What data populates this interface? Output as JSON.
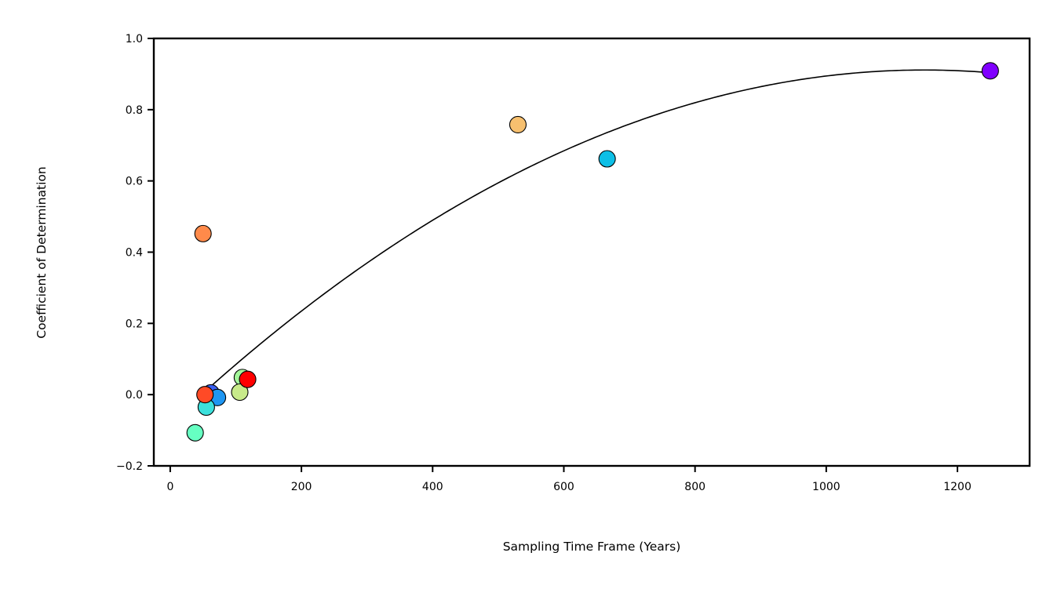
{
  "chart_data": {
    "type": "scatter",
    "title": "",
    "xlabel": "Sampling Time Frame (Years)",
    "ylabel": "Coefficient of Determination",
    "xlim": [
      -25,
      1310
    ],
    "ylim": [
      -0.2,
      1.0
    ],
    "xticks": [
      0,
      200,
      400,
      600,
      800,
      1000,
      1200
    ],
    "yticks": [
      -0.2,
      0.0,
      0.2,
      0.4,
      0.6,
      0.8,
      1.0
    ],
    "xtick_labels": [
      "0",
      "200",
      "400",
      "600",
      "800",
      "1000",
      "1200"
    ],
    "ytick_labels": [
      "−0.2",
      "0.0",
      "0.2",
      "0.4",
      "0.6",
      "0.8",
      "1.0"
    ],
    "grid": false,
    "legend": "none",
    "points": [
      {
        "x": 1250,
        "y": 0.909,
        "color": "#8000ff"
      },
      {
        "x": 62,
        "y": 0.005,
        "color": "#3a5ff2"
      },
      {
        "x": 72,
        "y": -0.008,
        "color": "#1e96f2"
      },
      {
        "x": 666,
        "y": 0.662,
        "color": "#0dbfe6"
      },
      {
        "x": 55,
        "y": -0.035,
        "color": "#3ce0dc"
      },
      {
        "x": 38,
        "y": -0.107,
        "color": "#66ffc2"
      },
      {
        "x": 110,
        "y": 0.048,
        "color": "#a4f79b"
      },
      {
        "x": 106,
        "y": 0.007,
        "color": "#c8ea8a"
      },
      {
        "x": 530,
        "y": 0.758,
        "color": "#f7c06f"
      },
      {
        "x": 50,
        "y": 0.452,
        "color": "#ff8a4a"
      },
      {
        "x": 53,
        "y": 0.0,
        "color": "#ff4a26"
      },
      {
        "x": 118,
        "y": 0.043,
        "color": "#ff0000"
      }
    ],
    "fit_curve": {
      "type": "quadratic",
      "color": "#000000",
      "x_range": [
        45,
        1250
      ],
      "coefficients": {
        "a": -7.5e-07,
        "b": 0.001725,
        "c": -0.0805
      }
    }
  }
}
